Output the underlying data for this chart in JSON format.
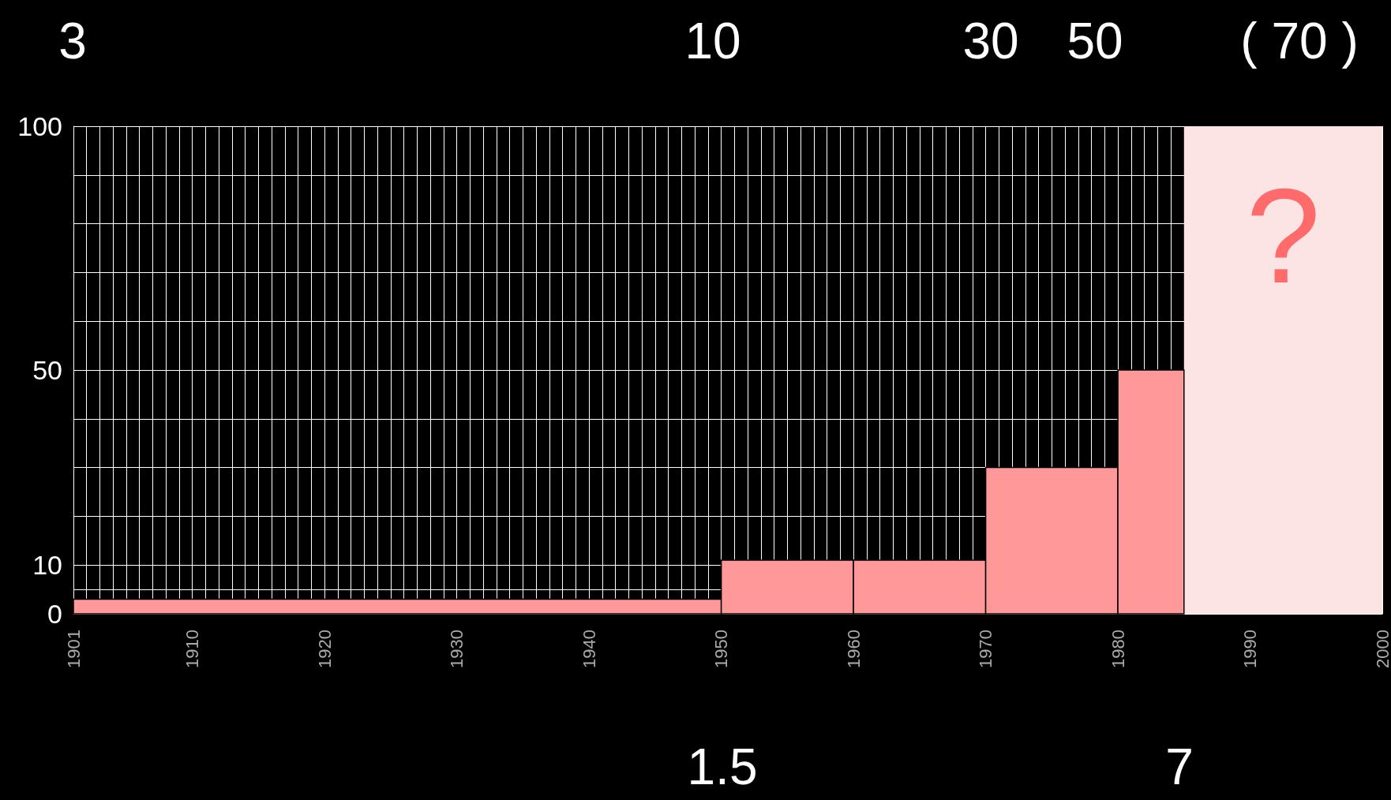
{
  "chart_data": {
    "type": "histogram",
    "bins": [
      1901,
      1950,
      1960,
      1970,
      1980,
      1985
    ],
    "values": [
      3,
      11,
      11,
      30,
      50
    ],
    "color": "#ff9999",
    "xlim": [
      1901,
      2000
    ],
    "xticks": [
      1901,
      {
        "value": 1902,
        "label": null
      },
      {
        "value": 1903,
        "label": null
      },
      {
        "value": 1904,
        "label": null
      },
      {
        "value": 1905,
        "label": null
      },
      {
        "value": 1906,
        "label": null
      },
      {
        "value": 1907,
        "label": null
      },
      {
        "value": 1908,
        "label": null
      },
      {
        "value": 1909,
        "label": null
      },
      1910,
      {
        "value": 1911,
        "label": null
      },
      {
        "value": 1912,
        "label": null
      },
      {
        "value": 1913,
        "label": null
      },
      {
        "value": 1914,
        "label": null
      },
      {
        "value": 1915,
        "label": null
      },
      {
        "value": 1916,
        "label": null
      },
      {
        "value": 1917,
        "label": null
      },
      {
        "value": 1918,
        "label": null
      },
      {
        "value": 1919,
        "label": null
      },
      1920,
      {
        "value": 1921,
        "label": null
      },
      {
        "value": 1922,
        "label": null
      },
      {
        "value": 1923,
        "label": null
      },
      {
        "value": 1924,
        "label": null
      },
      {
        "value": 1925,
        "label": null
      },
      {
        "value": 1926,
        "label": null
      },
      {
        "value": 1927,
        "label": null
      },
      {
        "value": 1928,
        "label": null
      },
      {
        "value": 1929,
        "label": null
      },
      1930,
      {
        "value": 1931,
        "label": null
      },
      {
        "value": 1932,
        "label": null
      },
      {
        "value": 1933,
        "label": null
      },
      {
        "value": 1934,
        "label": null
      },
      {
        "value": 1935,
        "label": null
      },
      {
        "value": 1936,
        "label": null
      },
      {
        "value": 1937,
        "label": null
      },
      {
        "value": 1938,
        "label": null
      },
      {
        "value": 1939,
        "label": null
      },
      1940,
      {
        "value": 1941,
        "label": null
      },
      {
        "value": 1942,
        "label": null
      },
      {
        "value": 1943,
        "label": null
      },
      {
        "value": 1944,
        "label": null
      },
      {
        "value": 1945,
        "label": null
      },
      {
        "value": 1946,
        "label": null
      },
      {
        "value": 1947,
        "label": null
      },
      {
        "value": 1948,
        "label": null
      },
      {
        "value": 1949,
        "label": null
      },
      1950,
      {
        "value": 1951,
        "label": null
      },
      {
        "value": 1952,
        "label": null
      },
      {
        "value": 1953,
        "label": null
      },
      {
        "value": 1954,
        "label": null
      },
      {
        "value": 1955,
        "label": null
      },
      {
        "value": 1956,
        "label": null
      },
      {
        "value": 1957,
        "label": null
      },
      {
        "value": 1958,
        "label": null
      },
      {
        "value": 1959,
        "label": null
      },
      1960,
      {
        "value": 1961,
        "label": null
      },
      {
        "value": 1962,
        "label": null
      },
      {
        "value": 1963,
        "label": null
      },
      {
        "value": 1964,
        "label": null
      },
      {
        "value": 1965,
        "label": null
      },
      {
        "value": 1966,
        "label": null
      },
      {
        "value": 1967,
        "label": null
      },
      {
        "value": 1968,
        "label": null
      },
      {
        "value": 1969,
        "label": null
      },
      1970,
      {
        "value": 1971,
        "label": null
      },
      {
        "value": 1972,
        "label": null
      },
      {
        "value": 1973,
        "label": null
      },
      {
        "value": 1974,
        "label": null
      },
      {
        "value": 1975,
        "label": null
      },
      {
        "value": 1976,
        "label": null
      },
      {
        "value": 1977,
        "label": null
      },
      {
        "value": 1978,
        "label": null
      },
      {
        "value": 1979,
        "label": null
      },
      1980,
      {
        "value": 1981,
        "label": null
      },
      {
        "value": 1982,
        "label": null
      },
      {
        "value": 1983,
        "label": null
      },
      {
        "value": 1984,
        "label": null
      },
      1990,
      2000
    ],
    "ylim": [
      0,
      100
    ],
    "yticks": [
      0,
      {
        "value": 5,
        "label": null
      },
      10,
      {
        "value": 20,
        "label": null
      },
      {
        "value": 30,
        "label": null
      },
      {
        "value": 40,
        "label": null
      },
      50,
      {
        "value": 60,
        "label": null
      },
      {
        "value": 70,
        "label": null
      },
      {
        "value": 80,
        "label": null
      },
      {
        "value": 90,
        "label": null
      },
      100
    ],
    "grid": true,
    "bands": [
      {
        "axis": "x",
        "from": 1985,
        "to": 2000,
        "label": "?",
        "color": "#fce4e4"
      }
    ],
    "annotations": [
      "3",
      "10",
      "30",
      "50",
      "( 70 )",
      "1.5",
      "7"
    ]
  }
}
